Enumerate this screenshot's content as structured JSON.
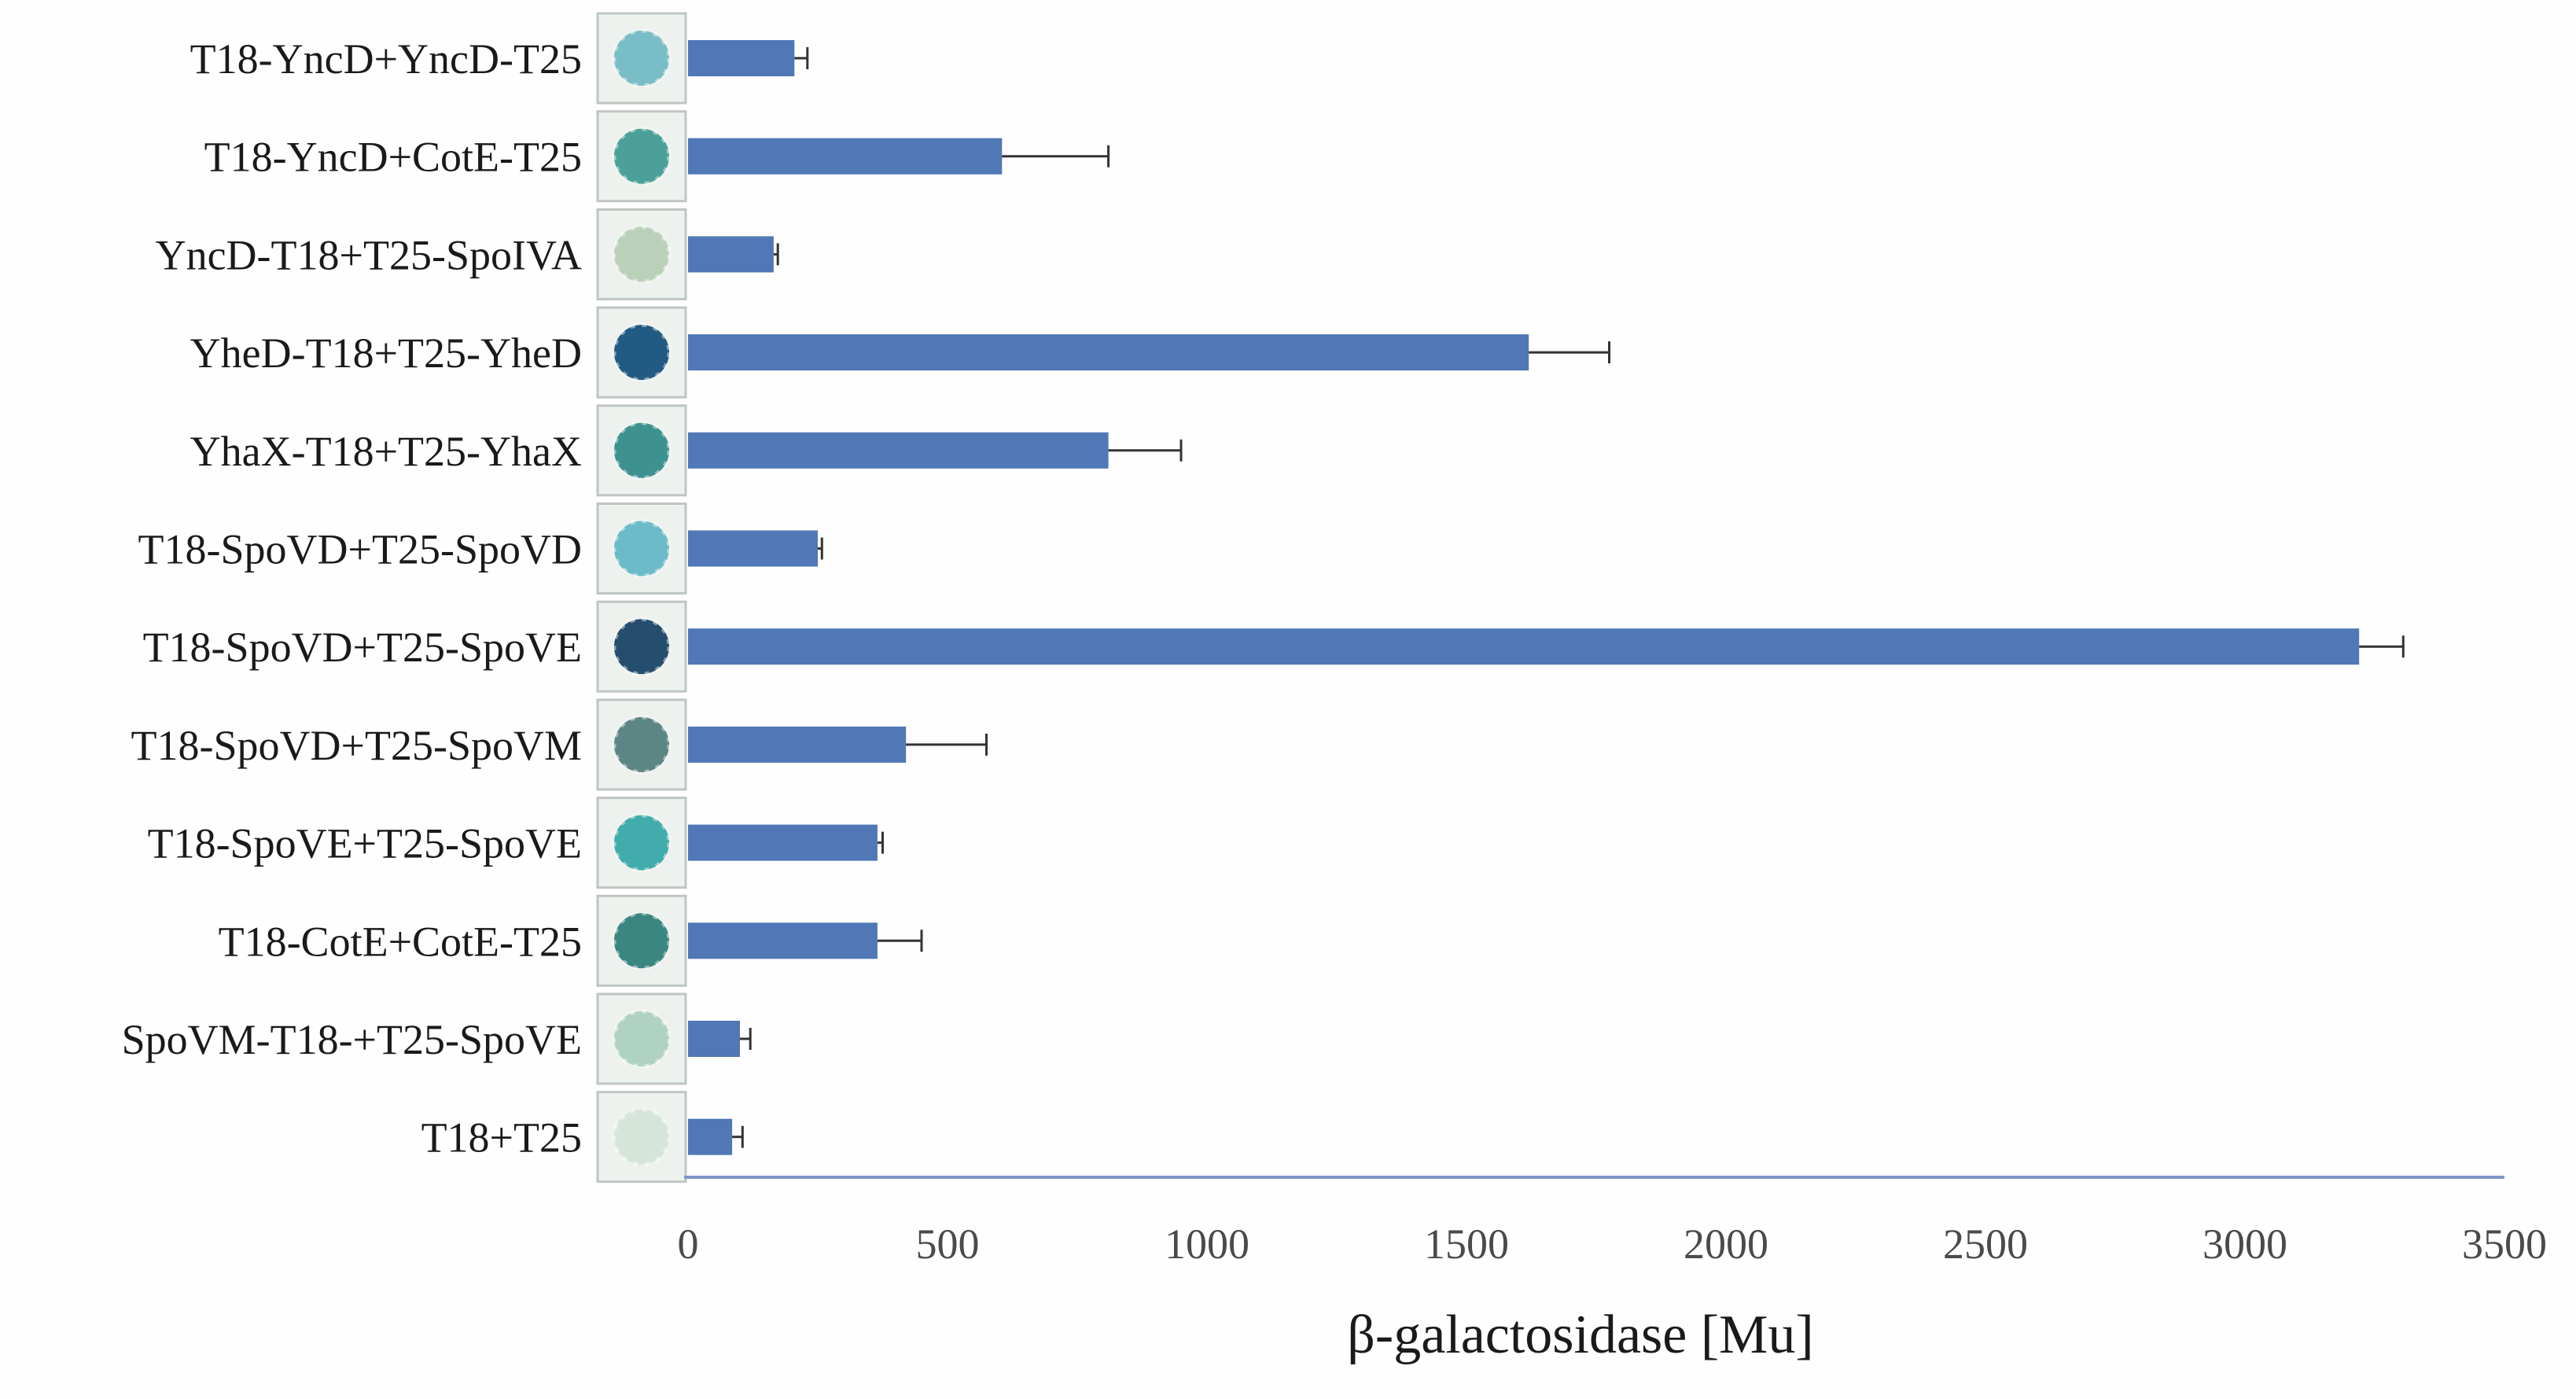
{
  "chart_data": {
    "type": "bar",
    "orientation": "horizontal",
    "title": "",
    "xlabel": "β-galactosidase [Mu]",
    "ylabel": "",
    "xlim": [
      0,
      3500
    ],
    "xticks": [
      0,
      500,
      1000,
      1500,
      2000,
      2500,
      3000,
      3500
    ],
    "xtick_labels": [
      "0",
      "500",
      "1000",
      "1500",
      "2000",
      "2500",
      "3000",
      "3500"
    ],
    "grid": false,
    "categories": [
      "T18-YncD+YncD-T25",
      "T18-YncD+CotE-T25",
      "YncD-T18+T25-SpoIVA",
      "YheD-T18+T25-YheD",
      "YhaX-T18+T25-YhaX",
      "T18-SpoVD+T25-SpoVD",
      "T18-SpoVD+T25-SpoVE",
      "T18-SpoVD+T25-SpoVM",
      "T18-SpoVE+T25-SpoVE",
      "T18-CotE+CotE-T25",
      "SpoVM-T18-+T25-SpoVE",
      "T18+T25"
    ],
    "values": [
      205,
      605,
      165,
      1620,
      810,
      250,
      3220,
      420,
      365,
      365,
      100,
      85
    ],
    "errors": [
      25,
      205,
      8,
      155,
      140,
      8,
      85,
      155,
      10,
      85,
      20,
      20
    ],
    "colony_colors": [
      "#6fb9c2",
      "#3d9a93",
      "#b5cdb3",
      "#0f4d7a",
      "#2e8a87",
      "#5fb6c6",
      "#143f62",
      "#4f7d7a",
      "#33a6a6",
      "#2a7d76",
      "#a9cfbf",
      "#d4e4d8"
    ],
    "bar_color": "#5078b6",
    "axis_color": "#8096c8"
  }
}
